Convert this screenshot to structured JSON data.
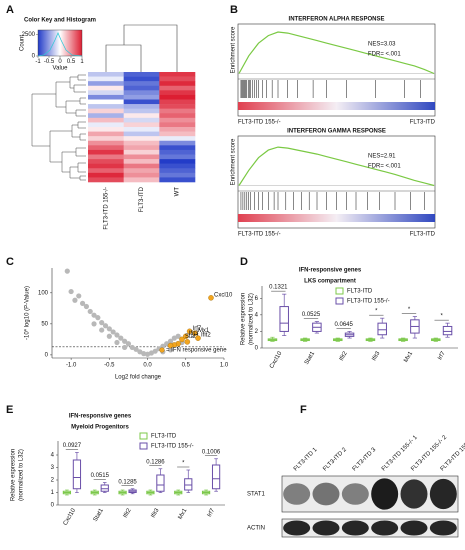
{
  "panels": {
    "A": {
      "label": "A",
      "key_title": "Color Key and Histogram",
      "key_ylabel": "Count",
      "key_xlabel": "Value",
      "key_xticks": [
        -1,
        -0.5,
        0,
        0.5,
        1
      ],
      "key_xlim": [
        -1,
        1
      ],
      "key_ylim": [
        0,
        3000
      ],
      "key_yticks": [
        0,
        2500
      ],
      "columns": [
        "FLT3-ITD 155-/-",
        "FLT3-ITD",
        "WT"
      ],
      "heatmap": [
        [
          -0.3,
          -0.8,
          0.9
        ],
        [
          -0.1,
          -0.9,
          0.8
        ],
        [
          -0.5,
          -0.7,
          0.95
        ],
        [
          0.1,
          -0.8,
          0.7
        ],
        [
          -0.2,
          -0.6,
          0.9
        ],
        [
          -0.6,
          -0.5,
          1
        ],
        [
          0,
          -0.9,
          0.85
        ],
        [
          -0.3,
          -0.4,
          0.8
        ],
        [
          0.2,
          -0.3,
          0.6
        ],
        [
          -0.4,
          0.1,
          0.7
        ],
        [
          0.3,
          -0.2,
          0.5
        ],
        [
          -0.1,
          0.2,
          0.6
        ],
        [
          0.1,
          -0.1,
          0.4
        ],
        [
          0.4,
          -0.3,
          0.3
        ],
        [
          0.2,
          0.1,
          -0.1
        ],
        [
          0.5,
          0.3,
          -0.6
        ],
        [
          0.7,
          0.4,
          -0.9
        ],
        [
          0.9,
          0.2,
          -0.8
        ],
        [
          0.6,
          0.5,
          -0.7
        ],
        [
          0.8,
          0.3,
          -1
        ],
        [
          0.9,
          0.6,
          -0.9
        ],
        [
          0.7,
          0.4,
          -0.8
        ],
        [
          0.95,
          0.5,
          -0.7
        ],
        [
          0.8,
          0.3,
          -0.9
        ]
      ]
    },
    "B": {
      "label": "B",
      "alpha": {
        "title": "INTERFERON ALPHA RESPONSE",
        "ylabel": "Enrichment score",
        "nes": "NES=3.03",
        "fdr": "FDR= <.001",
        "left": "FLT3-ITD 155-/-",
        "right": "FLT3-ITD",
        "es_lim": [
          -0.05,
          0.9
        ],
        "es": [
          0,
          0.35,
          0.6,
          0.75,
          0.82,
          0.8,
          0.75,
          0.7,
          0.65,
          0.6,
          0.55,
          0.5,
          0.45,
          0.4,
          0.35,
          0.3,
          0.25,
          0.2,
          0.15,
          0.08,
          0
        ],
        "hits": [
          0.01,
          0.015,
          0.02,
          0.025,
          0.03,
          0.035,
          0.04,
          0.05,
          0.055,
          0.06,
          0.07,
          0.08,
          0.09,
          0.1,
          0.12,
          0.14,
          0.17,
          0.2,
          0.25,
          0.3,
          0.38,
          0.45,
          0.55,
          0.7,
          0.85,
          0.93
        ]
      },
      "gamma": {
        "title": "INTERFERON GAMMA RESPONSE",
        "ylabel": "Enrichment score",
        "nes": "NES=2.91",
        "fdr": "FDR= <.001",
        "left": "FLT3-ITD 155-/-",
        "right": "FLT3-ITD",
        "es_lim": [
          -0.05,
          0.9
        ],
        "es": [
          0,
          0.3,
          0.55,
          0.7,
          0.76,
          0.74,
          0.7,
          0.66,
          0.62,
          0.57,
          0.52,
          0.47,
          0.42,
          0.37,
          0.32,
          0.27,
          0.22,
          0.16,
          0.1,
          0.05,
          0
        ],
        "hits": [
          0.01,
          0.02,
          0.03,
          0.04,
          0.05,
          0.06,
          0.08,
          0.1,
          0.12,
          0.15,
          0.18,
          0.2,
          0.24,
          0.28,
          0.32,
          0.36,
          0.4,
          0.45,
          0.5,
          0.55,
          0.6,
          0.66,
          0.72,
          0.8,
          0.88,
          0.95
        ]
      }
    },
    "C": {
      "label": "C",
      "xlabel": "Log2 fold change",
      "ylabel": "-10* log10 (P-Value)",
      "xlim": [
        -1.25,
        1.0
      ],
      "ylim": [
        -5,
        140
      ],
      "xticks": [
        {
          "value": -1,
          "label": "-1.0"
        },
        -0.5,
        {
          "value": 0,
          "label": "0.0"
        },
        0.5,
        {
          "value": 1,
          "label": "1.0"
        }
      ],
      "yticks": [
        0,
        50,
        100
      ],
      "threshold": 13,
      "points": {
        "x": [
          -1.05,
          -1.0,
          -0.9,
          -0.85,
          -0.8,
          -0.75,
          -0.7,
          -0.65,
          -0.6,
          -0.55,
          -0.5,
          -0.45,
          -0.4,
          -0.35,
          -0.3,
          -0.25,
          -0.2,
          -0.15,
          -0.1,
          -0.05,
          0,
          0.05,
          0.1,
          0.15,
          0.2,
          0.25,
          0.3,
          0.35,
          0.4,
          -0.7,
          -0.5,
          -0.3,
          0.3,
          -0.95,
          -0.4,
          0.45,
          0.2,
          -0.6
        ],
        "y": [
          135,
          102,
          95,
          83,
          78,
          70,
          64,
          60,
          52,
          47,
          42,
          37,
          32,
          27,
          22,
          18,
          12,
          9,
          5,
          2,
          1,
          3,
          6,
          10,
          14,
          18,
          22,
          27,
          30,
          50,
          30,
          12,
          8,
          88,
          20,
          20,
          5,
          40
        ]
      },
      "ifn": {
        "legend": "= IFN responsive gene",
        "x": [
          0.83,
          0.55,
          0.62,
          0.5,
          0.45,
          0.66,
          0.4,
          0.35,
          0.52,
          0.3
        ],
        "y": [
          92,
          38,
          35,
          30,
          25,
          27,
          18,
          16,
          21,
          15
        ],
        "labels": [
          "Cxcl10",
          "Irf7",
          "Mx1",
          "Ifit3",
          "Stat1",
          "Ifit2",
          null,
          null,
          null,
          null
        ]
      }
    },
    "D": {
      "label": "D",
      "title": [
        "IFN-responsive genes",
        "LKS compartment"
      ],
      "ylabel": [
        "Relative expression",
        "(normalized to L32)"
      ],
      "ylim": [
        0,
        7
      ],
      "yticks": [
        0,
        2,
        4,
        6
      ],
      "categories": [
        "Cxcl10",
        "Stat1",
        "Ifit2",
        "Ifit3",
        "Mx1",
        "Irf7"
      ],
      "annotations": [
        "0.1321",
        "0.0525",
        "0.0645",
        "*",
        "*",
        "*"
      ],
      "series": [
        {
          "name": "FLT3-ITD",
          "color": "#7cc84a",
          "values": [
            [
              0.8,
              0.9,
              1,
              1.1,
              1.3
            ],
            [
              0.8,
              0.9,
              1,
              1.1,
              1.2
            ],
            [
              0.8,
              0.9,
              1,
              1.1,
              1.2
            ],
            [
              0.8,
              0.9,
              1,
              1.1,
              1.2
            ],
            [
              0.8,
              0.9,
              1,
              1.1,
              1.2
            ],
            [
              0.8,
              0.9,
              1,
              1.1,
              1.2
            ]
          ]
        },
        {
          "name": "FLT3-ITD 155-/-",
          "color": "#6a4fa8",
          "values": [
            [
              1.5,
              2,
              3,
              5,
              6.5
            ],
            [
              1.8,
              2,
              2.5,
              3,
              3.2
            ],
            [
              1.2,
              1.4,
              1.6,
              1.8,
              2
            ],
            [
              1.2,
              1.6,
              2.2,
              3,
              3.6
            ],
            [
              1.2,
              1.8,
              2.6,
              3.4,
              3.8
            ],
            [
              1.3,
              1.6,
              2,
              2.6,
              3
            ]
          ]
        }
      ]
    },
    "E": {
      "label": "E",
      "title": [
        "IFN-responsive genes",
        "Myeloid Progenitors"
      ],
      "ylabel": [
        "Relative expression",
        "(normalized to L32)"
      ],
      "ylim": [
        0,
        4.8
      ],
      "yticks": [
        0,
        1,
        2,
        3,
        4
      ],
      "categories": [
        "Cxcl10",
        "Stat1",
        "Ifit2",
        "Ifit3",
        "Mx1",
        "Irf7"
      ],
      "annotations": [
        "0.0927",
        "0.0515",
        "0.1285",
        "0.1286",
        "*",
        "0.1006"
      ],
      "series": [
        {
          "name": "FLT3-ITD",
          "color": "#7cc84a",
          "values": [
            [
              0.8,
              0.9,
              1,
              1.1,
              1.2
            ],
            [
              0.8,
              0.9,
              1,
              1.1,
              1.2
            ],
            [
              0.8,
              0.9,
              1,
              1.1,
              1.2
            ],
            [
              0.8,
              0.9,
              1,
              1.1,
              1.2
            ],
            [
              0.8,
              0.9,
              1,
              1.1,
              1.2
            ],
            [
              0.8,
              0.9,
              1,
              1.1,
              1.2
            ]
          ]
        },
        {
          "name": "FLT3-ITD 155-/-",
          "color": "#6a4fa8",
          "values": [
            [
              1,
              1.3,
              2.2,
              3.6,
              4.2
            ],
            [
              1,
              1.1,
              1.3,
              1.6,
              1.8
            ],
            [
              0.9,
              1,
              1.1,
              1.2,
              1.3
            ],
            [
              1,
              1.1,
              1.6,
              2.4,
              2.9
            ],
            [
              1,
              1.2,
              1.6,
              2.1,
              2.8
            ],
            [
              1.1,
              1.3,
              2.1,
              3.2,
              3.7
            ]
          ]
        }
      ]
    },
    "F": {
      "label": "F",
      "lanes": [
        "FLT3-ITD 1",
        "FLT3-ITD 2",
        "FLT3-ITD 3",
        "FLT3-ITD 155-/- 1",
        "FLT3-ITD 155-/- 2",
        "FLT3-ITD 155-/- 3"
      ],
      "bands": [
        "STAT1",
        "ACTIN"
      ],
      "stat1_intensity": [
        0.5,
        0.55,
        0.5,
        0.95,
        0.85,
        0.9
      ],
      "actin_intensity": [
        0.9,
        0.9,
        0.9,
        0.9,
        0.9,
        0.9
      ]
    }
  }
}
